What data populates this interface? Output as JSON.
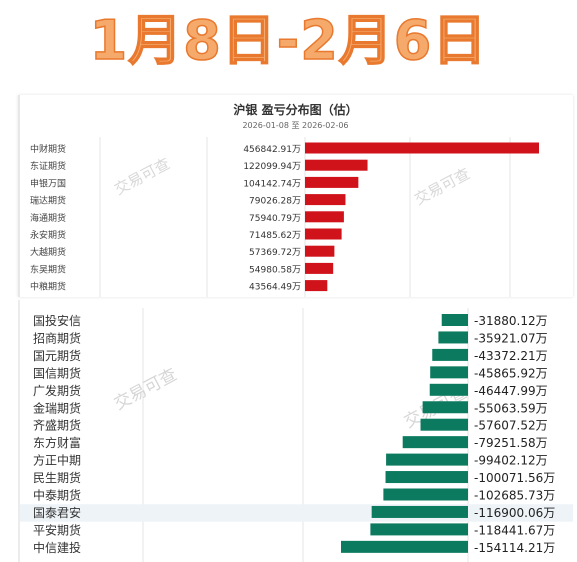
{
  "headline": "1月8日-2月6日",
  "watermark": "交易可查",
  "chart_data": [
    {
      "type": "bar",
      "orientation": "horizontal",
      "title": "沪银 盈亏分布图（估）",
      "subtitle": "2026-01-08 至 2026-02-06",
      "bar_color": "#d0121b",
      "categories": [
        "中财期货",
        "东证期货",
        "申银万国",
        "瑞达期货",
        "海通期货",
        "永安期货",
        "大越期货",
        "东吴期货",
        "中粮期货"
      ],
      "values": [
        456842.91,
        122099.94,
        104142.74,
        79026.28,
        75940.79,
        71485.62,
        57369.72,
        54980.58,
        43564.49
      ],
      "labels": [
        "456842.91万",
        "122099.94万",
        "104142.74万",
        "79026.28万",
        "75940.79万",
        "71485.62万",
        "57369.72万",
        "54980.58万",
        "43564.49万"
      ],
      "unit": "万"
    },
    {
      "type": "bar",
      "orientation": "horizontal",
      "bar_color": "#0b7a5f",
      "categories": [
        "国投安信",
        "招商期货",
        "国元期货",
        "国信期货",
        "广发期货",
        "金瑞期货",
        "齐盛期货",
        "东方财富",
        "方正中期",
        "民生期货",
        "中泰期货",
        "国泰君安",
        "平安期货",
        "中信建投"
      ],
      "values": [
        -31880.12,
        -35921.07,
        -43372.21,
        -45865.92,
        -46447.99,
        -55063.59,
        -57607.52,
        -79251.58,
        -99402.12,
        -100071.56,
        -102685.73,
        -116900.06,
        -118441.67,
        -154114.21
      ],
      "labels": [
        "-31880.12万",
        "-35921.07万",
        "-43372.21万",
        "-45865.92万",
        "-46447.99万",
        "-55063.59万",
        "-57607.52万",
        "-79251.58万",
        "-99402.12万",
        "-100071.56万",
        "-102685.73万",
        "-116900.06万",
        "-118441.67万",
        "-154114.21万"
      ],
      "highlight_row": "国泰君安",
      "unit": "万"
    }
  ]
}
